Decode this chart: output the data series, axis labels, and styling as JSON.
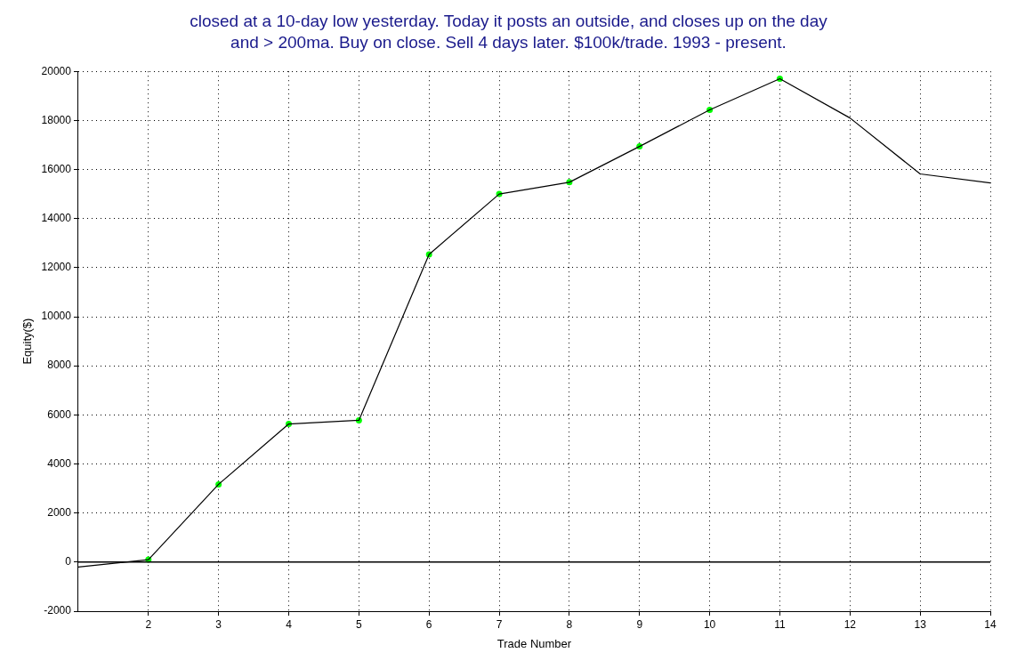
{
  "chart_data": {
    "type": "line",
    "title": "closed at a 10-day low yesterday. Today it posts an outside, and closes up on the day\nand > 200ma. Buy on close. Sell 4 days later. $100k/trade. 1993 - present.",
    "xlabel": "Trade Number",
    "ylabel": "Equity($)",
    "x": [
      1,
      2,
      3,
      4,
      5,
      6,
      7,
      8,
      9,
      10,
      11,
      12,
      13,
      14
    ],
    "series": [
      {
        "color": "#000000",
        "marker": "none",
        "values": [
          -200,
          100,
          3170,
          5630,
          5780,
          12540,
          15000,
          15480,
          16940,
          18430,
          19700,
          18100,
          15820,
          15450
        ]
      },
      {
        "type": "scatter",
        "color": "#00ff00",
        "marker": "circle",
        "x": [
          2,
          3,
          4,
          5,
          6,
          7,
          8,
          9,
          10,
          11
        ],
        "values": [
          100,
          3170,
          5630,
          5780,
          12540,
          15000,
          15480,
          16940,
          18430,
          19700
        ]
      }
    ],
    "xlim": [
      1,
      14
    ],
    "xticks": [
      2,
      3,
      4,
      5,
      6,
      7,
      8,
      9,
      10,
      11,
      12,
      13,
      14
    ],
    "ylim": [
      -2000,
      20000
    ],
    "yticks": [
      -2000,
      0,
      2000,
      4000,
      6000,
      8000,
      10000,
      12000,
      14000,
      16000,
      18000,
      20000
    ],
    "ref_lines": [
      {
        "axis": "y",
        "value": 0,
        "color": "#000000"
      }
    ],
    "grid": true,
    "legend": false
  }
}
